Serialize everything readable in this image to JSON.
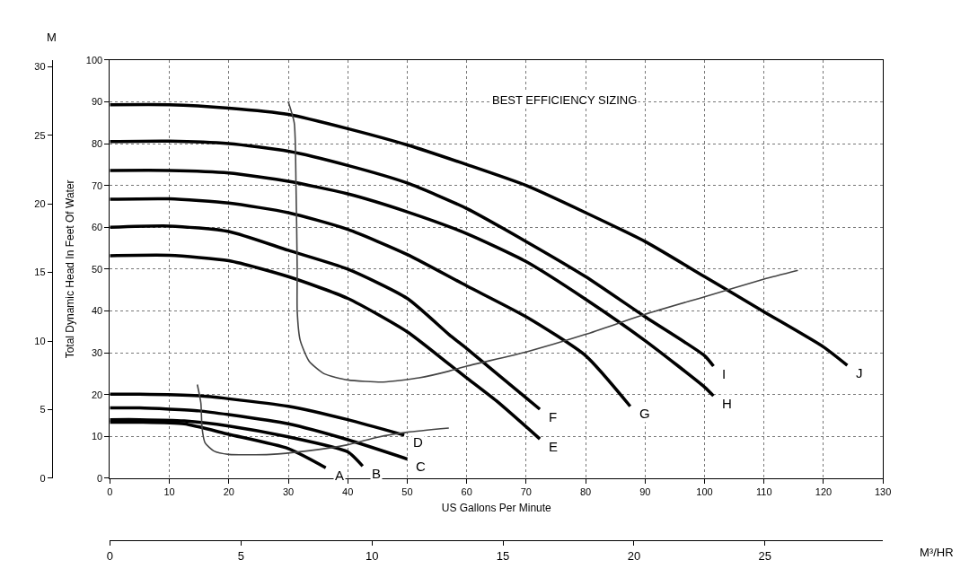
{
  "chart_data": {
    "type": "line",
    "xlabel": "US Gallons Per Minute",
    "ylabel": "Total Dynamic Head In Feet Of Water",
    "y2label": "M",
    "x2label": "M³/HR",
    "xlim": [
      0,
      130
    ],
    "xticks": [
      0,
      10,
      20,
      30,
      40,
      50,
      60,
      70,
      80,
      90,
      100,
      110,
      120,
      130
    ],
    "ylim": [
      0,
      100
    ],
    "yticks": [
      0,
      10,
      20,
      30,
      40,
      50,
      60,
      70,
      80,
      90,
      100
    ],
    "y2lim": [
      0,
      30.48
    ],
    "y2ticks": [
      0,
      5,
      10,
      15,
      20,
      25,
      30
    ],
    "x2lim": [
      0,
      29.5
    ],
    "x2ticks": [
      0,
      5,
      10,
      15,
      20,
      25
    ],
    "grid": true,
    "legend": false,
    "line_style": "solid",
    "marker": "none",
    "annotations": [
      "BEST EFFICIENCY SIZING"
    ],
    "series": [
      {
        "name": "A",
        "color": "#000000",
        "x": [
          0,
          5,
          12.5,
          20,
          30,
          36.3
        ],
        "values": [
          13.4,
          13.4,
          13,
          10.5,
          7.1,
          2.5
        ]
      },
      {
        "name": "B",
        "color": "#000000",
        "x": [
          0,
          5,
          12.5,
          20,
          30,
          40,
          42.5
        ],
        "values": [
          14,
          14,
          13.7,
          12.5,
          9.9,
          6.3,
          2.9
        ]
      },
      {
        "name": "C",
        "color": "#000000",
        "x": [
          0,
          5,
          15,
          20,
          30,
          40,
          50
        ],
        "values": [
          16.8,
          16.8,
          16.1,
          15.2,
          13,
          9.2,
          4.6
        ]
      },
      {
        "name": "D",
        "color": "#000000",
        "x": [
          0,
          5,
          15,
          20,
          30,
          40,
          49.5
        ],
        "values": [
          20.1,
          20.1,
          19.7,
          19,
          17.2,
          14,
          10.3
        ]
      },
      {
        "name": "E",
        "color": "#000000",
        "x": [
          0,
          10,
          20,
          30,
          40,
          50,
          57,
          60,
          65,
          72.3
        ],
        "values": [
          53.2,
          53.3,
          52,
          48.2,
          43,
          35,
          27.3,
          24,
          18.5,
          9.4
        ]
      },
      {
        "name": "F",
        "color": "#000000",
        "x": [
          0,
          10,
          20,
          30,
          40,
          50,
          57,
          60,
          70,
          72.3
        ],
        "values": [
          60,
          60.3,
          59,
          54.5,
          50,
          43,
          34.4,
          31,
          19.2,
          16.5
        ]
      },
      {
        "name": "G",
        "color": "#000000",
        "x": [
          0,
          10,
          20,
          30,
          40,
          50,
          60,
          70,
          80,
          87.5
        ],
        "values": [
          66.7,
          66.8,
          65.8,
          63.5,
          59.5,
          53.5,
          46,
          38.6,
          29.3,
          17.2
        ]
      },
      {
        "name": "H",
        "color": "#000000",
        "x": [
          0,
          10,
          20,
          30,
          40,
          50,
          60,
          70,
          80,
          90,
          100,
          101.5
        ],
        "values": [
          73.6,
          73.6,
          73,
          71,
          68,
          63.7,
          58.5,
          51.8,
          42.8,
          32.9,
          21.8,
          19.7
        ]
      },
      {
        "name": "I",
        "color": "#000000",
        "x": [
          0,
          10,
          20,
          30,
          40,
          50,
          60,
          70,
          80,
          90,
          100,
          101.5
        ],
        "values": [
          80.5,
          80.6,
          80,
          78.2,
          74.8,
          70.6,
          64.5,
          56.6,
          48.2,
          38.6,
          29.3,
          26.8
        ]
      },
      {
        "name": "J",
        "color": "#000000",
        "x": [
          0,
          10,
          20,
          30,
          40,
          50,
          60,
          70,
          80,
          90,
          100,
          110,
          120,
          124
        ],
        "values": [
          89.3,
          89.3,
          88.5,
          87,
          83.6,
          79.7,
          75,
          70,
          63.5,
          56.6,
          48.2,
          39.8,
          31.4,
          27
        ]
      },
      {
        "color": "#444444",
        "x": [
          14.7,
          15.3,
          15.5,
          16,
          17.5,
          20,
          27,
          33,
          40,
          45,
          50,
          57
        ],
        "values": [
          22.4,
          18,
          12,
          8.5,
          6.5,
          5.7,
          5.7,
          6.5,
          8,
          9.8,
          11,
          12
        ]
      },
      {
        "color": "#444444",
        "x": [
          30,
          31,
          31.3,
          31.5,
          31.5,
          32,
          33.5,
          36,
          40,
          46,
          52,
          57,
          60,
          70,
          80,
          90,
          100,
          110,
          115.7
        ],
        "values": [
          90,
          85,
          70,
          50,
          40,
          33,
          28,
          25,
          23.5,
          23,
          24,
          25.6,
          26.8,
          30.2,
          34.4,
          39.2,
          43.4,
          47.6,
          49.7
        ]
      }
    ]
  }
}
